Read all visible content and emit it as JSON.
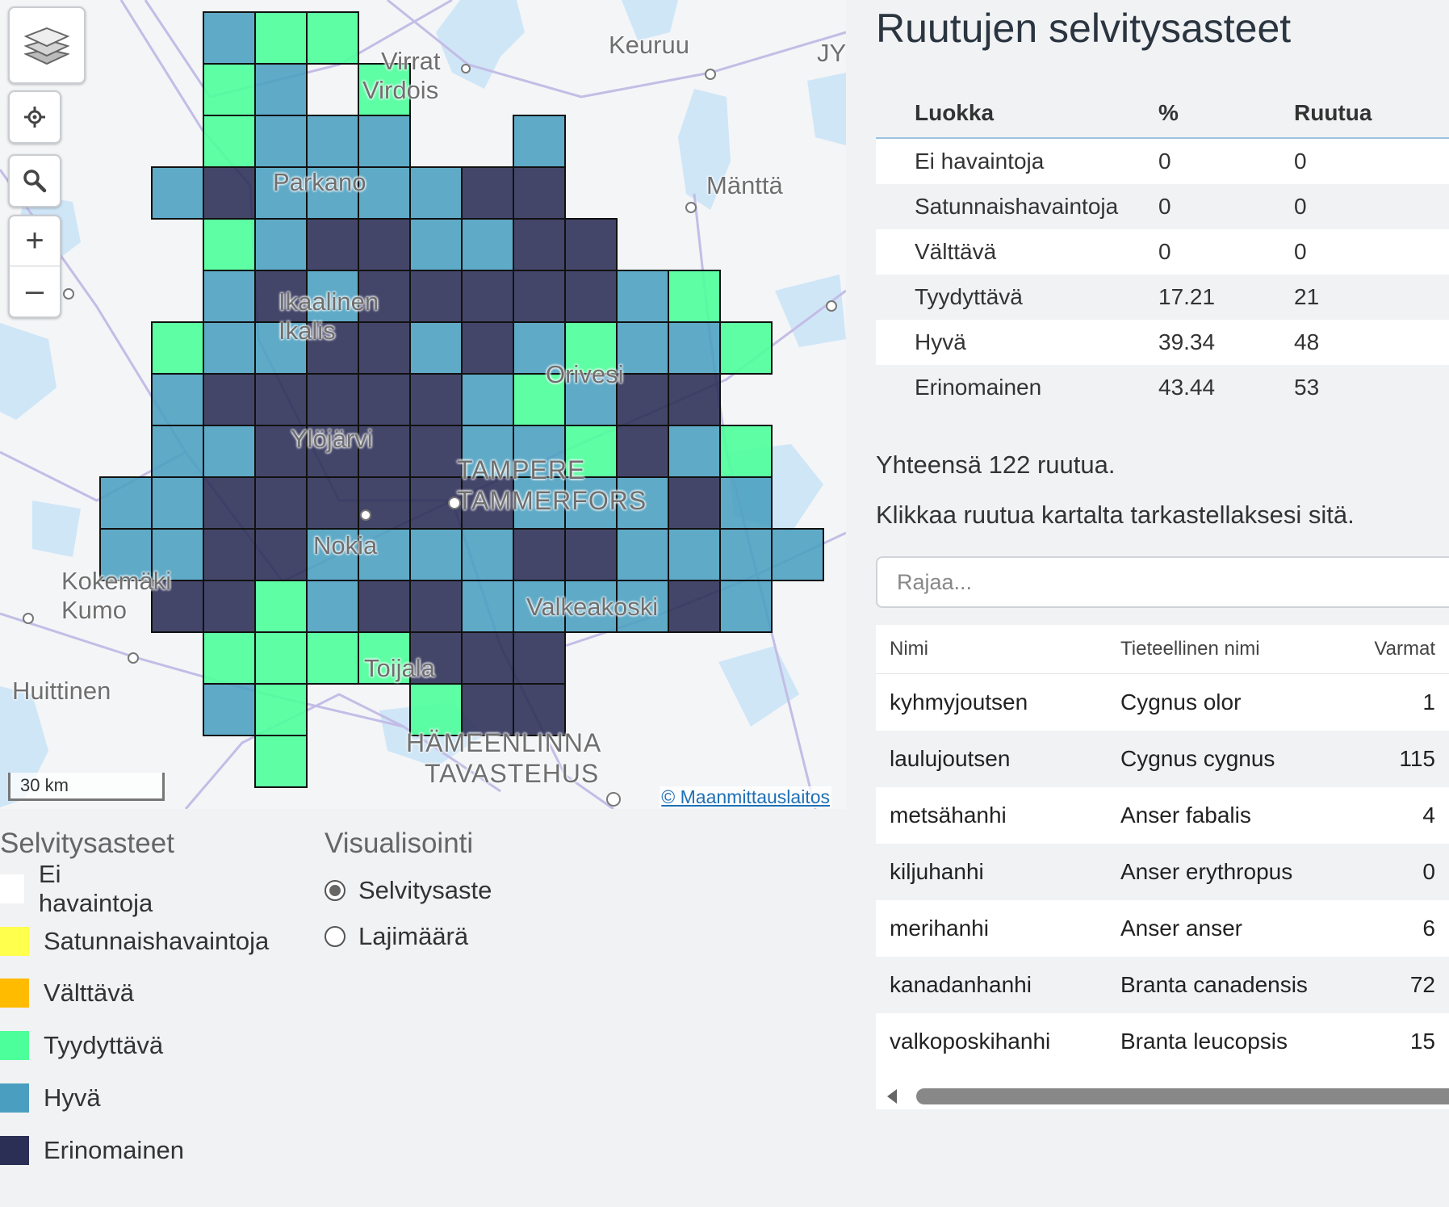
{
  "map": {
    "attribution": "© Maanmittauslaitos",
    "scale_label": "30 km",
    "controls": {
      "layers_icon": "layers-icon",
      "locate_icon": "locate-icon",
      "search_icon": "search-icon",
      "zoom_in": "+",
      "zoom_out": "–"
    },
    "places": [
      "Virrat",
      "Virdois",
      "Keuruu",
      "JY",
      "Parkano",
      "Mänttä",
      "Ikaalinen",
      "Ikalis",
      "Orivesi",
      "Ylöjärvi",
      "TAMPERE",
      "TAMMERFORS",
      "Nokia",
      "Kokemäki",
      "Kumo",
      "Valkeakoski",
      "Toijala",
      "Huittinen",
      "HÄMEENLINNA",
      "TAVASTEHUS"
    ],
    "grid": [
      "...HTT.........",
      "...TH.T........",
      "...THHH..H.....",
      "..HEHHHHEE.....",
      "...THEEHHEE....",
      "...HEHEEEEEHT..",
      "..THHEEHEHTHHT.",
      "..HEEEEEHTHEE..",
      "..HHEEEEHHTEHT.",
      ".HHEEEEEEHHHEH.",
      ".HHEEHHHHEEHHHH",
      "..EETHEEHHHHEH.",
      "...TTTTEEE.....",
      "...HT..TEE.....",
      "....T.........."
    ]
  },
  "legend": {
    "title": "Selvitysasteet",
    "items": [
      {
        "label": "Ei havaintoja",
        "color": "#ffffff"
      },
      {
        "label": "Satunnaishavaintoja",
        "color": "#ffff4d"
      },
      {
        "label": "Välttävä",
        "color": "#ffbb00"
      },
      {
        "label": "Tyydyttävä",
        "color": "#4dff9a"
      },
      {
        "label": "Hyvä",
        "color": "#4a9fc0"
      },
      {
        "label": "Erinomainen",
        "color": "#2b2e55"
      }
    ]
  },
  "visualization": {
    "title": "Visualisointi",
    "options": [
      {
        "label": "Selvitysaste",
        "selected": true
      },
      {
        "label": "Lajimäärä",
        "selected": false
      }
    ]
  },
  "panel": {
    "title": "Ruutujen selvitysasteet",
    "stats_headers": [
      "Luokka",
      "%",
      "Ruutua"
    ],
    "stats_rows": [
      [
        "Ei havaintoja",
        "0",
        "0"
      ],
      [
        "Satunnaishavaintoja",
        "0",
        "0"
      ],
      [
        "Välttävä",
        "0",
        "0"
      ],
      [
        "Tyydyttävä",
        "17.21",
        "21"
      ],
      [
        "Hyvä",
        "39.34",
        "48"
      ],
      [
        "Erinomainen",
        "43.44",
        "53"
      ]
    ],
    "total": "Yhteensä 122 ruutua.",
    "hint": "Klikkaa ruutua kartalta tarkastellaksesi sitä.",
    "filter_placeholder": "Rajaa...",
    "species_headers": [
      "Nimi",
      "Tieteellinen nimi",
      "Varmat"
    ],
    "species_rows": [
      [
        "kyhmyjoutsen",
        "Cygnus olor",
        "1"
      ],
      [
        "laulujoutsen",
        "Cygnus cygnus",
        "115"
      ],
      [
        "metsähanhi",
        "Anser fabalis",
        "4"
      ],
      [
        "kiljuhanhi",
        "Anser erythropus",
        "0"
      ],
      [
        "merihanhi",
        "Anser anser",
        "6"
      ],
      [
        "kanadanhanhi",
        "Branta canadensis",
        "72"
      ],
      [
        "valkoposkihanhi",
        "Branta leucopsis",
        "15"
      ]
    ]
  }
}
